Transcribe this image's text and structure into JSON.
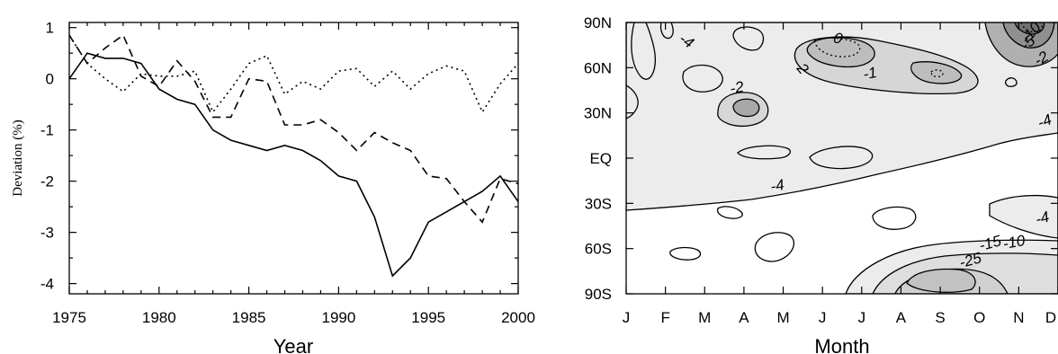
{
  "chart_data": [
    {
      "type": "line",
      "title": "",
      "xlabel": "Year",
      "ylabel": "Deviation (%)",
      "xlim": [
        1975,
        2000
      ],
      "ylim": [
        -4.2,
        1.1
      ],
      "xticks": [
        "1975",
        "1980",
        "1985",
        "1990",
        "1995",
        "2000"
      ],
      "yticks": [
        "1",
        "0",
        "-1",
        "-2",
        "-3",
        "-4"
      ],
      "x": [
        1975,
        1976,
        1977,
        1978,
        1979,
        1980,
        1981,
        1982,
        1983,
        1984,
        1985,
        1986,
        1987,
        1988,
        1989,
        1990,
        1991,
        1992,
        1993,
        1994,
        1995,
        1996,
        1997,
        1998,
        1999,
        2000
      ],
      "series": [
        {
          "style": "solid",
          "values": [
            0.0,
            0.5,
            0.4,
            0.4,
            0.3,
            -0.2,
            -0.4,
            -0.5,
            -1.0,
            -1.2,
            -1.3,
            -1.4,
            -1.3,
            -1.4,
            -1.6,
            -1.9,
            -2.0,
            -2.7,
            -3.85,
            -3.5,
            -2.8,
            -2.6,
            -2.4,
            -2.2,
            -1.9,
            -2.4
          ]
        },
        {
          "style": "dashed",
          "values": [
            0.85,
            0.3,
            0.6,
            0.85,
            0.05,
            -0.15,
            0.35,
            -0.05,
            -0.75,
            -0.75,
            0.0,
            -0.05,
            -0.9,
            -0.9,
            -0.8,
            -1.05,
            -1.4,
            -1.05,
            -1.25,
            -1.4,
            -1.9,
            -1.95,
            -2.4,
            -2.8,
            -1.95,
            -2.05
          ]
        },
        {
          "style": "dotted",
          "values": [
            0.85,
            0.3,
            0.0,
            -0.25,
            0.1,
            0.05,
            0.05,
            0.15,
            -0.65,
            -0.2,
            0.3,
            0.45,
            -0.3,
            -0.05,
            -0.2,
            0.15,
            0.2,
            -0.15,
            0.15,
            -0.2,
            0.1,
            0.25,
            0.15,
            -0.65,
            -0.1,
            0.3
          ]
        }
      ],
      "grid": false,
      "legend": "none"
    },
    {
      "type": "contour",
      "title": "",
      "xlabel": "Month",
      "ylabel": "",
      "xticks": [
        "J",
        "F",
        "M",
        "A",
        "M",
        "J",
        "J",
        "A",
        "S",
        "O",
        "N",
        "D"
      ],
      "yticks": [
        "90N",
        "60N",
        "30N",
        "EQ",
        "30S",
        "60S",
        "90S"
      ],
      "contour_labels": [
        "-4",
        "0",
        "2",
        "-1",
        "-2",
        "-5",
        "-10",
        "-2",
        "-4",
        "-4",
        "-4",
        "-15",
        "-10",
        "-25"
      ],
      "fill_colors": {
        "background": "#ffffff",
        "light": "#ececec",
        "medium": "#d6d6d6",
        "dark": "#b2b2b2",
        "darker": "#8f8f8f"
      }
    }
  ]
}
